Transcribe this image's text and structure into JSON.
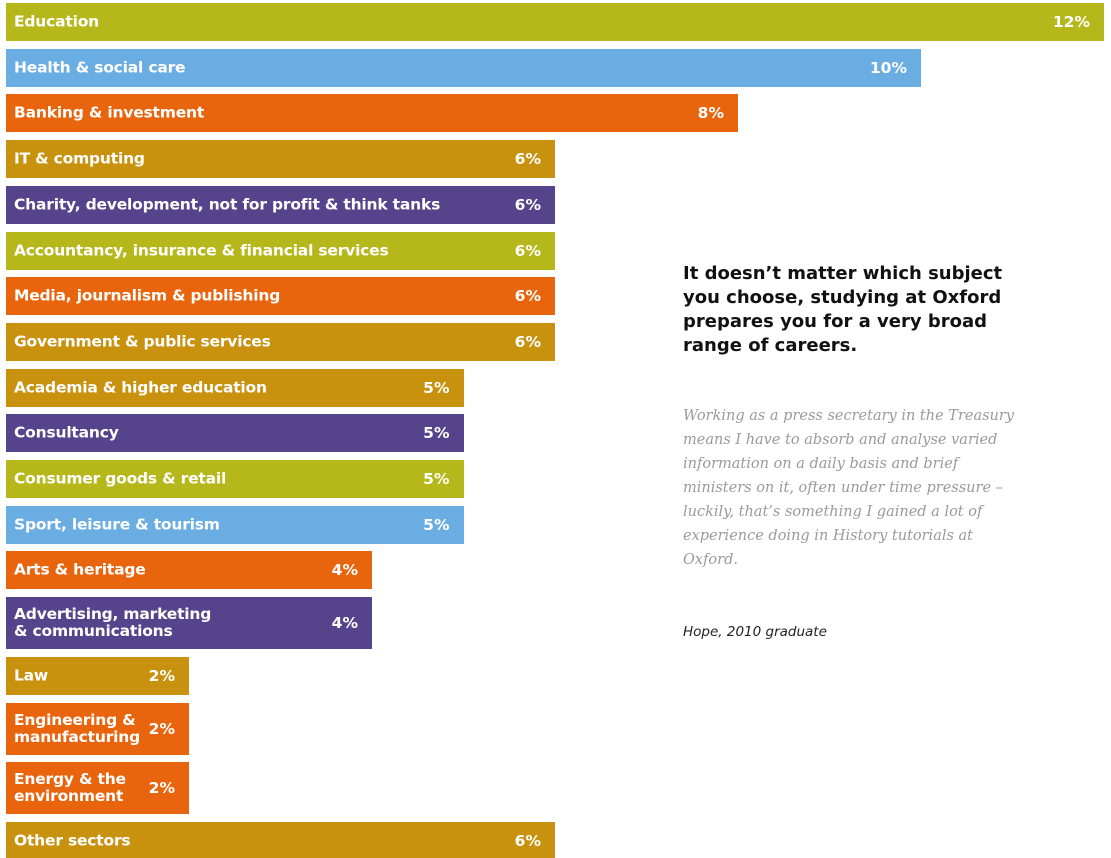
{
  "chart_data": {
    "type": "bar",
    "categories": [
      "Education",
      "Health & social care",
      "Banking & investment",
      "IT & computing",
      "Charity, development, not for profit & think tanks",
      "Accountancy, insurance & financial services",
      "Media, journalism & publishing",
      "Government & public services",
      "Academia & higher education",
      "Consultancy",
      "Consumer goods & retail",
      "Sport, leisure & tourism",
      "Arts & heritage",
      "Advertising, marketing\n& communications",
      "Law",
      "Engineering &\nmanufacturing",
      "Energy & the\nenvironment",
      "Other sectors"
    ],
    "values": [
      12,
      10,
      8,
      6,
      6,
      6,
      6,
      6,
      5,
      5,
      5,
      5,
      4,
      4,
      2,
      2,
      2,
      6
    ],
    "value_labels": [
      "12%",
      "10%",
      "8%",
      "6%",
      "6%",
      "6%",
      "6%",
      "6%",
      "5%",
      "5%",
      "5%",
      "5%",
      "4%",
      "4%",
      "2%",
      "2%",
      "2%",
      "6%"
    ],
    "colors": [
      "#b6b71a",
      "#6aade2",
      "#e8650e",
      "#c8920f",
      "#55448b",
      "#b6b71a",
      "#e8650e",
      "#c8920f",
      "#c8920f",
      "#55448b",
      "#b6b71a",
      "#6aade2",
      "#e8650e",
      "#55448b",
      "#c8920f",
      "#e8650e",
      "#e8650e",
      "#c8920f"
    ],
    "xlim": [
      0,
      12
    ]
  },
  "side_text": {
    "heading": "It doesn’t matter which subject you choose, studying at Oxford prepares you for a very broad range of careers.",
    "quote": "Working as a press secretary in the Treasury means I have to absorb and analyse varied information on a daily basis and brief ministers on it, often under time pressure – luckily, that’s something I gained a lot of experience doing in History tutorials at Oxford.",
    "attribution": "Hope, 2010 graduate"
  }
}
